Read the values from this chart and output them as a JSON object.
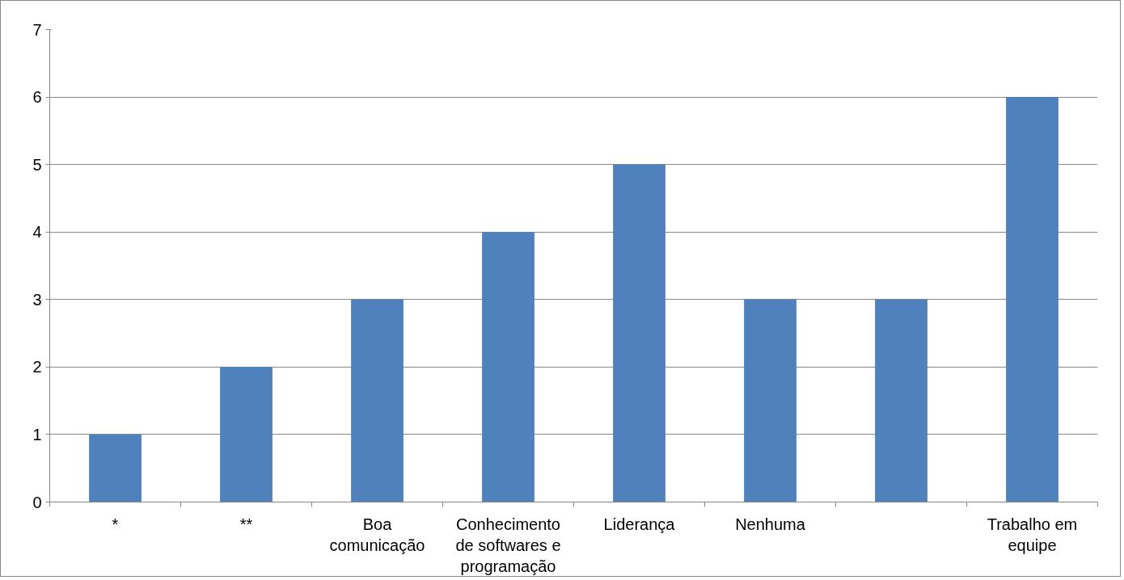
{
  "chart_data": {
    "type": "bar",
    "categories": [
      "*",
      "**",
      "Boa comunicação",
      "Conhecimento de softwares e programação",
      "Liderança",
      "Nenhuma",
      null,
      "Trabalho em equipe"
    ],
    "values": [
      1,
      2,
      3,
      4,
      5,
      3,
      3,
      6
    ],
    "color": "#4f81bd",
    "ylim": [
      0,
      7
    ],
    "yticks": [
      0,
      1,
      2,
      3,
      4,
      5,
      6,
      7
    ],
    "grid": "y"
  }
}
